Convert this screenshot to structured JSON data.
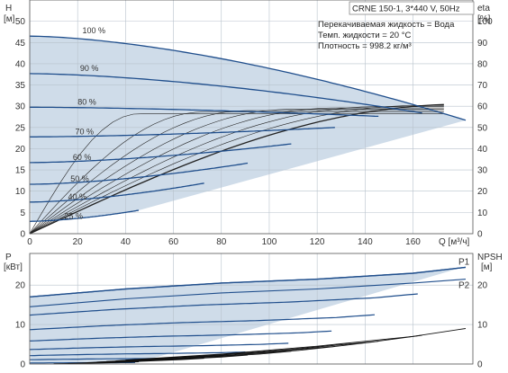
{
  "chart_data": [
    {
      "type": "line",
      "name_label": "",
      "title": "CRNE 150-1, 3*440 V, 50Hz",
      "info_lines": [
        "Перекачиваемая жидкость = Вода",
        "Темп. жидкости = 20 °C",
        "Плотность = 998.2 кг/м³"
      ],
      "xlabel": "Q [м³/ч]",
      "ylabel_left": "H",
      "ylabel_left_unit": "[м]",
      "ylabel_right": "eta",
      "ylabel_right_unit": "[%]",
      "xlim": [
        0,
        185
      ],
      "ylim": [
        0,
        55
      ],
      "ylim_right": [
        0,
        110
      ],
      "x_ticks": [
        0,
        20,
        40,
        60,
        80,
        100,
        120,
        140,
        160
      ],
      "y_ticks": [
        0,
        5,
        10,
        15,
        20,
        25,
        30,
        35,
        40,
        45,
        50
      ],
      "y_right_ticks": [
        0,
        10,
        20,
        30,
        40,
        50,
        60,
        70,
        80,
        90,
        100
      ],
      "grid": true,
      "series": [
        {
          "name": "100 %",
          "speed": 1.0
        },
        {
          "name": "90 %",
          "speed": 0.9
        },
        {
          "name": "80 %",
          "speed": 0.8
        },
        {
          "name": "70 %",
          "speed": 0.7
        },
        {
          "name": "60 %",
          "speed": 0.6
        },
        {
          "name": "50 %",
          "speed": 0.5
        },
        {
          "name": "40 %",
          "speed": 0.4
        },
        {
          "name": "25 %",
          "speed": 0.25
        }
      ],
      "head_curve_100": {
        "x": [
          0,
          20,
          40,
          60,
          80,
          100,
          120,
          140,
          160,
          182
        ],
        "y": [
          46.5,
          46.2,
          45.0,
          43.0,
          40.5,
          37.5,
          34.5,
          31.5,
          29.0,
          26.7
        ]
      },
      "efficiency_curve_100": {
        "x": [
          0,
          20,
          40,
          60,
          80,
          100,
          120,
          140,
          160,
          182
        ],
        "y": [
          0,
          20,
          36,
          46,
          53,
          57,
          59.5,
          60.5,
          60.5,
          60
        ]
      },
      "convergence_point": {
        "x": 182,
        "y": 26.7
      }
    },
    {
      "type": "line",
      "ylabel_left": "P",
      "ylabel_left_unit": "[кВт]",
      "ylabel_right": "NPSH",
      "ylabel_right_unit": "[м]",
      "xlim": [
        0,
        185
      ],
      "ylim": [
        0,
        28
      ],
      "y_ticks": [
        0,
        10,
        20
      ],
      "y_right_ticks": [
        0,
        10,
        20
      ],
      "grid": true,
      "series": [
        {
          "name": "P1",
          "x": [
            0,
            40,
            80,
            120,
            160,
            182
          ],
          "y": [
            17,
            19,
            20.5,
            21.5,
            23,
            24.5
          ]
        },
        {
          "name": "P2",
          "x": [
            0,
            40,
            80,
            120,
            160,
            182
          ],
          "y": [
            14.5,
            16.5,
            18,
            19,
            20.5,
            21.5
          ]
        }
      ],
      "npsh_curve": {
        "x": [
          40,
          80,
          120,
          160,
          182
        ],
        "y": [
          1,
          2.5,
          4.5,
          7,
          9
        ]
      }
    }
  ]
}
